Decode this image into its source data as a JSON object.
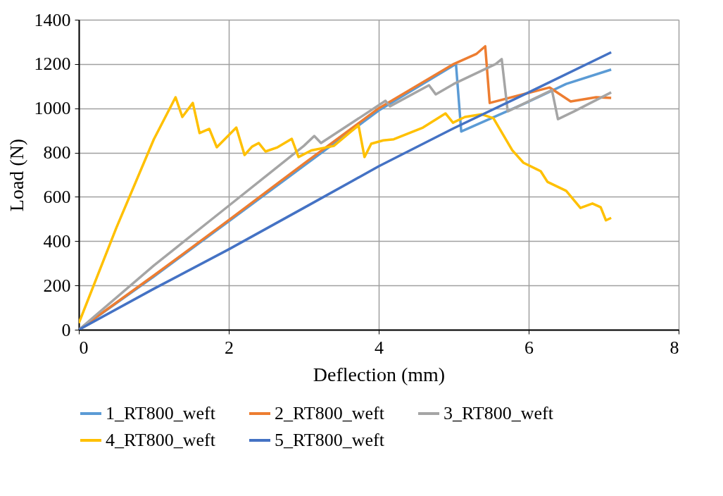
{
  "chart_data": {
    "type": "line",
    "xlabel": "Deflection (mm)",
    "ylabel": "Load (N)",
    "xlim": [
      0,
      8
    ],
    "xticks": [
      0,
      2,
      4,
      6,
      8
    ],
    "ylim": [
      0,
      1400
    ],
    "yticks": [
      0,
      200,
      400,
      600,
      800,
      1000,
      1200,
      1400
    ],
    "grid": true,
    "legend": "bottom",
    "marker": "none",
    "line_style": "solid",
    "series": [
      {
        "name": "1_RT800_weft",
        "color": "#5b9bd5",
        "x": [
          0,
          1,
          2,
          3,
          4,
          5.03,
          5.1,
          6,
          6.5,
          7.1
        ],
        "values": [
          0,
          240,
          490,
          740,
          990,
          1200,
          895,
          1030,
          1110,
          1175
        ]
      },
      {
        "name": "2_RT800_weft",
        "color": "#ed7d31",
        "x": [
          0,
          1,
          2,
          3,
          4,
          5,
          5.3,
          5.42,
          5.48,
          6,
          6.28,
          6.56,
          6.9,
          7.1
        ],
        "values": [
          0,
          245,
          495,
          750,
          1000,
          1200,
          1245,
          1280,
          1024,
          1070,
          1094,
          1031,
          1050,
          1047
        ]
      },
      {
        "name": "3_RT800_weft",
        "color": "#a5a5a5",
        "x": [
          0,
          1,
          2,
          3,
          3.14,
          3.23,
          4.09,
          4.15,
          4.67,
          4.76,
          5.0,
          5.56,
          5.64,
          5.72,
          6.31,
          6.39,
          6.6,
          7.1
        ],
        "values": [
          0,
          290,
          560,
          830,
          875,
          843,
          1034,
          1009,
          1104,
          1063,
          1110,
          1200,
          1222,
          986,
          1082,
          951,
          985,
          1072
        ]
      },
      {
        "name": "4_RT800_weft",
        "color": "#ffc000",
        "x": [
          0,
          0.5,
          1.0,
          1.29,
          1.38,
          1.52,
          1.61,
          1.74,
          1.84,
          2.1,
          2.21,
          2.31,
          2.4,
          2.49,
          2.65,
          2.84,
          2.93,
          3.1,
          3.4,
          3.73,
          3.81,
          3.9,
          4.06,
          4.2,
          4.59,
          4.89,
          4.99,
          5.15,
          5.37,
          5.53,
          5.78,
          5.93,
          6.16,
          6.25,
          6.5,
          6.69,
          6.85,
          6.96,
          7.03,
          7.1
        ],
        "values": [
          30,
          460,
          860,
          1050,
          961,
          1024,
          888,
          907,
          824,
          913,
          789,
          827,
          843,
          805,
          824,
          862,
          780,
          810,
          830,
          923,
          780,
          840,
          855,
          860,
          913,
          977,
          935,
          961,
          973,
          955,
          811,
          754,
          716,
          668,
          627,
          550,
          570,
          553,
          494,
          505
        ]
      },
      {
        "name": "5_RT800_weft",
        "color": "#4472c4",
        "x": [
          0,
          1,
          2,
          3,
          4,
          5,
          6,
          7.1
        ],
        "values": [
          0,
          185,
          363,
          550,
          738,
          910,
          1072,
          1253
        ]
      }
    ]
  }
}
